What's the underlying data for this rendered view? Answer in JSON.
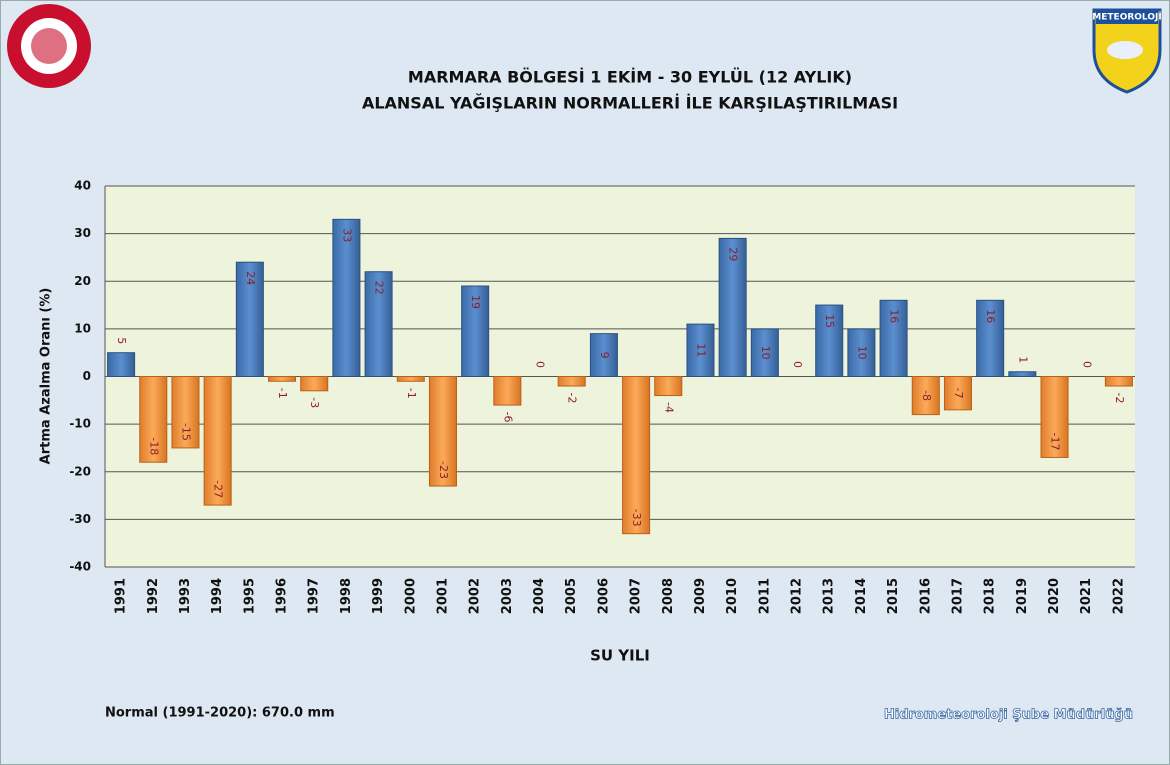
{
  "chart_data": {
    "type": "bar",
    "title": [
      "MARMARA BÖLGESİ  1 EKİM - 30 EYLÜL (12 AYLIK)",
      "ALANSAL YAĞIŞLARIN NORMALLERİ İLE KARŞILAŞTIRILMASI"
    ],
    "x_label": "SU YILI",
    "y_label": "Artma Azalma Oranı (%)",
    "categories": [
      "1991",
      "1992",
      "1993",
      "1994",
      "1995",
      "1996",
      "1997",
      "1998",
      "1999",
      "2000",
      "2001",
      "2002",
      "2003",
      "2004",
      "2005",
      "2006",
      "2007",
      "2008",
      "2009",
      "2010",
      "2011",
      "2012",
      "2013",
      "2014",
      "2015",
      "2016",
      "2017",
      "2018",
      "2019",
      "2020",
      "2021",
      "2022"
    ],
    "values": [
      5,
      -18,
      -15,
      -27,
      24,
      -1,
      -3,
      33,
      22,
      -1,
      -23,
      19,
      -6,
      0,
      -2,
      9,
      -33,
      -4,
      11,
      29,
      10,
      0,
      15,
      10,
      16,
      -8,
      -7,
      16,
      1,
      -17,
      0,
      -2
    ],
    "colors": {
      "positive": "#4f81bd",
      "negative": "#f79646"
    },
    "ylim": [
      -40,
      40
    ],
    "yticks": [
      -40,
      -30,
      -20,
      -10,
      0,
      10,
      20,
      30,
      40
    ],
    "grid": true,
    "note": "Normal (1991-2020): 670.0 mm",
    "credit": "Hidrometeoroloji Şube Müdürlüğü",
    "logo_text": "METEOROLOJİ"
  }
}
